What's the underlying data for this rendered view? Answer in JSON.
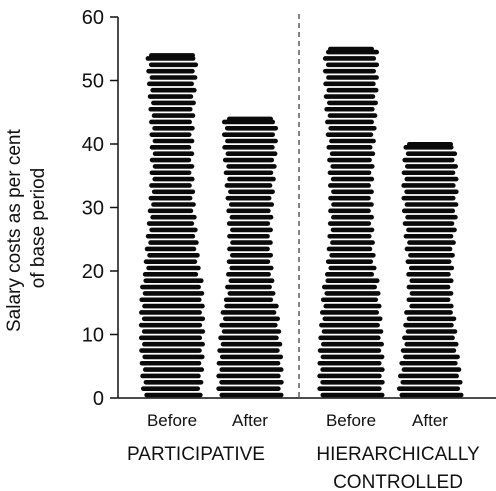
{
  "chart_data": {
    "type": "bar",
    "ylabel_line1": "Salary costs as per cent",
    "ylabel_line2": "of base period",
    "ylim": [
      0,
      60
    ],
    "yticks": [
      0,
      10,
      20,
      30,
      40,
      50,
      60
    ],
    "groups": [
      {
        "label": "PARTICIPATIVE",
        "label_lines": [
          "PARTICIPATIVE"
        ],
        "bars": [
          {
            "category": "Before",
            "value": 54
          },
          {
            "category": "After",
            "value": 44
          }
        ]
      },
      {
        "label": "HIERARCHICALLY CONTROLLED",
        "label_lines": [
          "HIERARCHICALLY",
          "CONTROLLED"
        ],
        "bars": [
          {
            "category": "Before",
            "value": 55
          },
          {
            "category": "After",
            "value": 40
          }
        ]
      }
    ],
    "grid": false,
    "group_divider": "dashed"
  }
}
